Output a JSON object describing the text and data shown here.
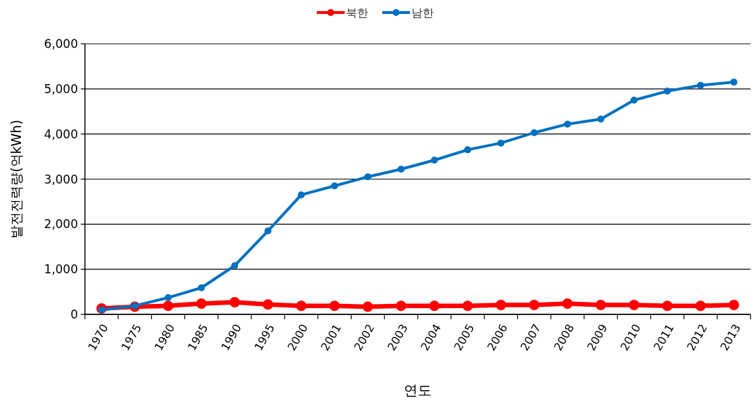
{
  "chart_data": {
    "type": "line",
    "xlabel": "연도",
    "ylabel": "발전전력량(억kWh)",
    "categories": [
      "1970",
      "1975",
      "1980",
      "1985",
      "1990",
      "1995",
      "2000",
      "2001",
      "2002",
      "2003",
      "2004",
      "2005",
      "2006",
      "2007",
      "2008",
      "2009",
      "2010",
      "2011",
      "2012",
      "2013"
    ],
    "series": [
      {
        "name": "북한",
        "color": "#ff0000",
        "values": [
          130,
          170,
          190,
          240,
          270,
          220,
          190,
          190,
          170,
          190,
          190,
          190,
          210,
          210,
          240,
          210,
          210,
          190,
          190,
          210
        ]
      },
      {
        "name": "남한",
        "color": "#0070c0",
        "values": [
          100,
          190,
          370,
          590,
          1080,
          1850,
          2650,
          2850,
          3050,
          3220,
          3420,
          3650,
          3800,
          4030,
          4220,
          4330,
          4750,
          4950,
          5080,
          5150
        ]
      }
    ],
    "ylim": [
      0,
      6000
    ],
    "yticks": [
      {
        "value": 0,
        "label": "0"
      },
      {
        "value": 1000,
        "label": "1,000"
      },
      {
        "value": 2000,
        "label": "2,000"
      },
      {
        "value": 3000,
        "label": "3,000"
      },
      {
        "value": 4000,
        "label": "4,000"
      },
      {
        "value": 5000,
        "label": "5,000"
      },
      {
        "value": 6000,
        "label": "6,000"
      }
    ],
    "grid": "y",
    "legend": "top",
    "marker": "circle",
    "line_style": "solid"
  }
}
